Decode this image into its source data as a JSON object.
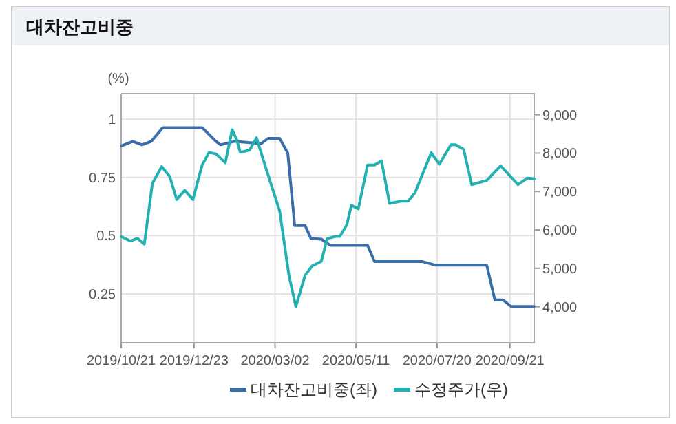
{
  "chart_data": {
    "type": "line",
    "title": "대차잔고비중",
    "ylabel": "(%)",
    "xlim": [
      "2019-10-21",
      "2020-10-12"
    ],
    "xticks": [
      {
        "value": "2019-10-21",
        "label": "2019/10/21"
      },
      {
        "value": "2019-12-23",
        "label": "2019/12/23"
      },
      {
        "value": "2020-03-02",
        "label": "2020/03/02"
      },
      {
        "value": "2020-05-11",
        "label": "2020/05/11"
      },
      {
        "value": "2020-07-20",
        "label": "2020/07/20"
      },
      {
        "value": "2020-09-21",
        "label": "2020/09/21"
      }
    ],
    "ylim": [
      0.04,
      1.11
    ],
    "yticks": [
      0.25,
      0.5,
      0.75,
      1
    ],
    "y2lim": [
      3060,
      9550
    ],
    "y2ticks": [
      {
        "value": 4000,
        "label": "4,000"
      },
      {
        "value": 5000,
        "label": "5,000"
      },
      {
        "value": 6000,
        "label": "6,000"
      },
      {
        "value": 7000,
        "label": "7,000"
      },
      {
        "value": 8000,
        "label": "8,000"
      },
      {
        "value": 9000,
        "label": "9,000"
      }
    ],
    "grid": true,
    "legend": "bottom",
    "series": [
      {
        "name": "대차잔고비중(좌)",
        "color": "#3a6ea8",
        "x": [
          "2019-10-21",
          "2019-10-31",
          "2019-11-08",
          "2019-11-16",
          "2019-11-26",
          "2019-12-30",
          "2020-01-11",
          "2020-01-15",
          "2020-01-27",
          "2020-02-19",
          "2020-02-25",
          "2020-03-06",
          "2020-03-13",
          "2020-03-19",
          "2020-03-28",
          "2020-04-02",
          "2020-04-11",
          "2020-04-19",
          "2020-05-21",
          "2020-05-27",
          "2020-07-07",
          "2020-07-19",
          "2020-09-01",
          "2020-09-08",
          "2020-09-15",
          "2020-09-22",
          "2020-10-12"
        ],
        "values": [
          0.885,
          0.905,
          0.89,
          0.905,
          0.964,
          0.964,
          0.905,
          0.89,
          0.905,
          0.895,
          0.918,
          0.918,
          0.855,
          0.543,
          0.543,
          0.488,
          0.485,
          0.458,
          0.458,
          0.389,
          0.389,
          0.373,
          0.373,
          0.224,
          0.224,
          0.196,
          0.196
        ]
      },
      {
        "name": "수정주가(우)",
        "color": "#22b1b0",
        "axis": "y2",
        "x": [
          "2019-10-21",
          "2019-10-29",
          "2019-11-04",
          "2019-11-10",
          "2019-11-17",
          "2019-11-25",
          "2019-12-02",
          "2019-12-08",
          "2019-12-15",
          "2019-12-22",
          "2019-12-30",
          "2020-01-05",
          "2020-01-11",
          "2020-01-19",
          "2020-01-25",
          "2020-01-29",
          "2020-02-01",
          "2020-02-09",
          "2020-02-15",
          "2020-02-23",
          "2020-03-06",
          "2020-03-14",
          "2020-03-20",
          "2020-03-28",
          "2020-04-03",
          "2020-04-11",
          "2020-04-16",
          "2020-04-23",
          "2020-04-27",
          "2020-05-03",
          "2020-05-07",
          "2020-05-13",
          "2020-05-21",
          "2020-05-27",
          "2020-06-02",
          "2020-06-09",
          "2020-06-19",
          "2020-06-25",
          "2020-07-01",
          "2020-07-15",
          "2020-07-22",
          "2020-08-01",
          "2020-08-05",
          "2020-08-12",
          "2020-08-19",
          "2020-09-01",
          "2020-09-13",
          "2020-09-28",
          "2020-10-06",
          "2020-10-12"
        ],
        "values": [
          5830,
          5710,
          5780,
          5630,
          7210,
          7650,
          7390,
          6790,
          7030,
          6790,
          7690,
          8020,
          7980,
          7750,
          8610,
          8340,
          8020,
          8080,
          8400,
          7620,
          6490,
          4820,
          4000,
          4820,
          5060,
          5180,
          5770,
          5830,
          5830,
          6130,
          6640,
          6550,
          7690,
          7690,
          7800,
          6690,
          6750,
          6750,
          6970,
          8010,
          7710,
          8220,
          8220,
          8100,
          7180,
          7290,
          7670,
          7180,
          7350,
          7330
        ]
      }
    ]
  }
}
